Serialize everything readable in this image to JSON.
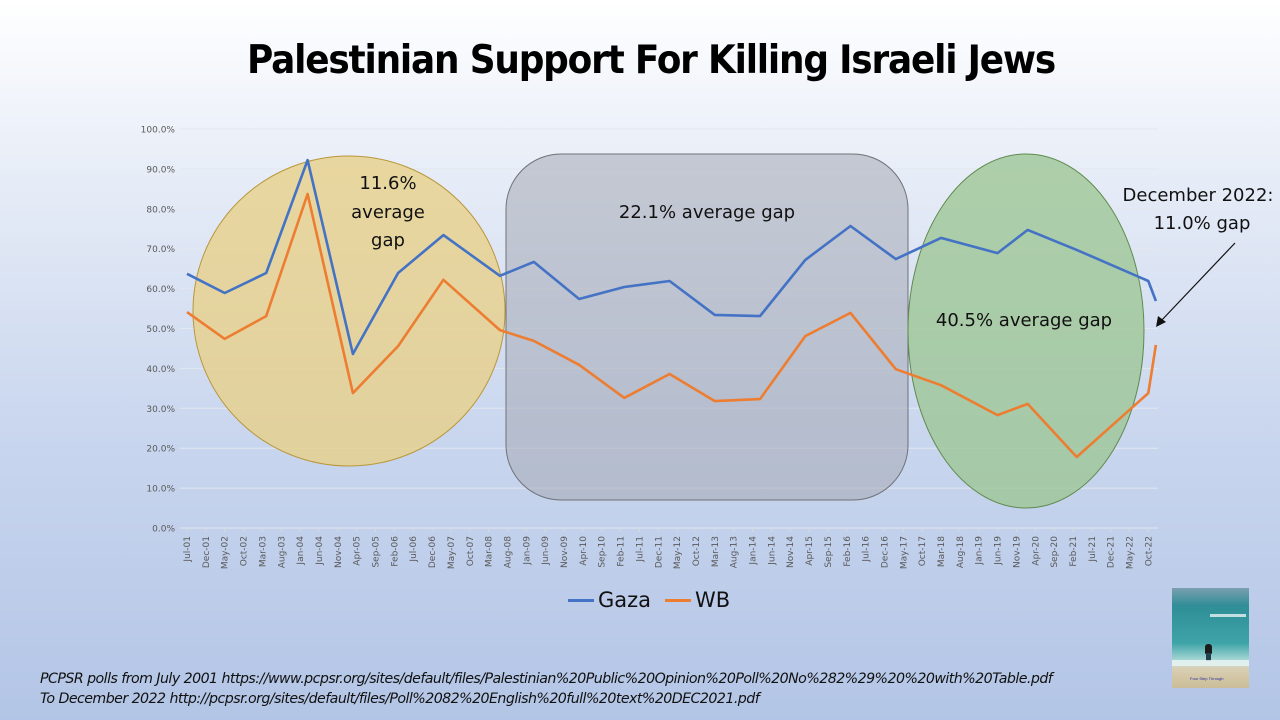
{
  "title": "Palestinian Support For Killing Israeli Jews",
  "chart_data": {
    "type": "line",
    "title": "Palestinian Support For Killing Israeli Jews",
    "xlabel": "",
    "ylabel": "",
    "ylim": [
      0,
      100
    ],
    "y_ticks": [
      "0.0%",
      "10.0%",
      "20.0%",
      "30.0%",
      "40.0%",
      "50.0%",
      "60.0%",
      "70.0%",
      "80.0%",
      "90.0%",
      "100.0%"
    ],
    "grid": true,
    "legend_position": "bottom-center",
    "x_axis_type": "date",
    "x_tick_labels": [
      "Jul-01",
      "Dec-01",
      "May-02",
      "Oct-02",
      "Mar-03",
      "Aug-03",
      "Jan-04",
      "Jun-04",
      "Nov-04",
      "Apr-05",
      "Sep-05",
      "Feb-06",
      "Jul-06",
      "Dec-06",
      "May-07",
      "Oct-07",
      "Mar-08",
      "Aug-08",
      "Jan-09",
      "Jun-09",
      "Nov-09",
      "Apr-10",
      "Sep-10",
      "Feb-11",
      "Jul-11",
      "Dec-11",
      "May-12",
      "Oct-12",
      "Mar-13",
      "Aug-13",
      "Jan-14",
      "Jun-14",
      "Nov-14",
      "Apr-15",
      "Sep-15",
      "Feb-16",
      "Jul-16",
      "Dec-16",
      "May-17",
      "Oct-17",
      "Mar-18",
      "Aug-18",
      "Jan-19",
      "Jun-19",
      "Nov-19",
      "Apr-20",
      "Sep-20",
      "Feb-21",
      "Jul-21",
      "Dec-21",
      "May-22",
      "Oct-22"
    ],
    "x": [
      "Jul-01",
      "May-02",
      "Apr-03",
      "Mar-04",
      "Mar-05",
      "Mar-06",
      "Mar-07",
      "Jun-08",
      "Mar-09",
      "Mar-10",
      "Mar-11",
      "Mar-12",
      "Mar-13",
      "Mar-14",
      "Mar-15",
      "Mar-16",
      "Mar-17",
      "Mar-18",
      "Jun-19",
      "Feb-20",
      "Mar-21",
      "Oct-22",
      "Dec-22"
    ],
    "x_month_index": [
      0,
      10,
      21,
      32,
      44,
      56,
      68,
      83,
      92,
      104,
      116,
      128,
      140,
      152,
      164,
      176,
      188,
      200,
      215,
      223,
      236,
      255,
      257
    ],
    "series": [
      {
        "name": "Gaza",
        "color": "#4472c4",
        "values": [
          63.7,
          58.9,
          63.9,
          92.2,
          43.6,
          63.9,
          73.4,
          63.2,
          66.7,
          57.4,
          60.4,
          61.9,
          53.4,
          53.1,
          67.2,
          75.7,
          67.4,
          72.7,
          68.9,
          74.7,
          69.7,
          61.9,
          56.9
        ]
      },
      {
        "name": "WB",
        "color": "#ed7d31",
        "values": [
          54.1,
          47.4,
          53.1,
          83.7,
          33.8,
          45.6,
          62.2,
          49.6,
          46.9,
          40.9,
          32.6,
          38.6,
          31.8,
          32.3,
          48.1,
          53.9,
          39.8,
          35.8,
          28.3,
          31.1,
          17.8,
          33.8,
          45.9
        ]
      }
    ],
    "annotations": [
      {
        "id": "gap-2001-2008",
        "text": "11.6% average gap",
        "shape": "ellipse",
        "fill": "#e8cf87"
      },
      {
        "id": "gap-2008-2017",
        "text": "22.1% average gap",
        "shape": "rounded-rect",
        "fill": "#a6aab4"
      },
      {
        "id": "gap-2017-2022",
        "text": "40.5% average gap",
        "shape": "ellipse",
        "fill": "#9cc594"
      },
      {
        "id": "dec-2022",
        "text": "December 2022: 11.0% gap",
        "shape": "arrow"
      }
    ]
  },
  "annotations": {
    "ellipse_1": [
      "11.6%",
      "average",
      "gap"
    ],
    "rect_2": "22.1% average gap",
    "ellipse_3": "40.5% average gap",
    "callout": [
      "December 2022:",
      "11.0% gap"
    ]
  },
  "legend": [
    {
      "label": "Gaza",
      "color": "#4472c4"
    },
    {
      "label": "WB",
      "color": "#ed7d31"
    }
  ],
  "footer": {
    "line1": "PCPSR polls from July 2001 https://www.pcpsr.org/sites/default/files/Palestinian%20Public%20Opinion%20Poll%20No%282%29%20%20with%20Table.pdf",
    "line2": "To December 2022 http://pcpsr.org/sites/default/files/Poll%2082%20English%20full%20text%20DEC2021.pdf"
  },
  "photo": {
    "caption": "Four Step Through"
  }
}
